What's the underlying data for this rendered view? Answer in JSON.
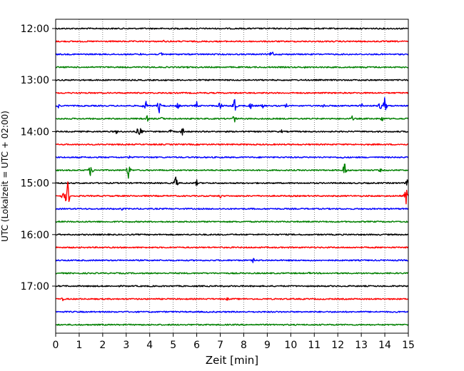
{
  "chart_data": {
    "type": "line",
    "title": "",
    "xlabel": "Zeit  [min]",
    "ylabel": "UTC (Lokalzeit = UTC + 02:00)",
    "xlim": [
      0,
      15
    ],
    "x_ticks": [
      "0",
      "1",
      "2",
      "3",
      "4",
      "5",
      "6",
      "7",
      "8",
      "9",
      "10",
      "11",
      "12",
      "13",
      "14",
      "15"
    ],
    "y_ticks": [
      "12:00",
      "13:00",
      "14:00",
      "15:00",
      "16:00",
      "17:00"
    ],
    "grid": "vertical dotted at each minute",
    "trace_colors": [
      "#000000",
      "#ff0000",
      "#0000ff",
      "#008000"
    ],
    "traces": [
      {
        "start": "12:00",
        "events": [
          {
            "t": 9.9,
            "amp": 2
          }
        ]
      },
      {
        "start": "12:15",
        "events": [
          {
            "t": 4.6,
            "amp": 2
          },
          {
            "t": 4.9,
            "amp": 2
          }
        ]
      },
      {
        "start": "12:30",
        "events": [
          {
            "t": 3.6,
            "amp": 2
          },
          {
            "t": 4.5,
            "amp": 5
          },
          {
            "t": 9.2,
            "amp": 8
          }
        ]
      },
      {
        "start": "12:45",
        "events": [
          {
            "t": 5.6,
            "amp": 2
          },
          {
            "t": 10.6,
            "amp": 2
          },
          {
            "t": 13.2,
            "amp": 2
          }
        ]
      },
      {
        "start": "13:00",
        "events": [
          {
            "t": 4.7,
            "amp": 2
          }
        ]
      },
      {
        "start": "13:15",
        "events": []
      },
      {
        "start": "13:30",
        "events": [
          {
            "t": 0.1,
            "amp": 5
          },
          {
            "t": 3.8,
            "amp": 14
          },
          {
            "t": 4.4,
            "amp": 12
          },
          {
            "t": 5.2,
            "amp": 6
          },
          {
            "t": 6.0,
            "amp": 6
          },
          {
            "t": 7.0,
            "amp": 10
          },
          {
            "t": 7.6,
            "amp": 16
          },
          {
            "t": 8.3,
            "amp": 7
          },
          {
            "t": 8.8,
            "amp": 5
          },
          {
            "t": 9.8,
            "amp": 4
          },
          {
            "t": 11.4,
            "amp": 5
          },
          {
            "t": 13.0,
            "amp": 6
          },
          {
            "t": 13.8,
            "amp": 8
          },
          {
            "t": 14.0,
            "amp": 14
          }
        ]
      },
      {
        "start": "13:45",
        "events": [
          {
            "t": 3.9,
            "amp": 5
          },
          {
            "t": 4.5,
            "amp": 4
          },
          {
            "t": 7.6,
            "amp": 8
          },
          {
            "t": 12.6,
            "amp": 5
          },
          {
            "t": 13.9,
            "amp": 6
          }
        ]
      },
      {
        "start": "14:00",
        "events": [
          {
            "t": 2.6,
            "amp": 5
          },
          {
            "t": 3.5,
            "amp": 7
          },
          {
            "t": 3.6,
            "amp": 9
          },
          {
            "t": 4.9,
            "amp": 4
          },
          {
            "t": 5.4,
            "amp": 8
          },
          {
            "t": 9.6,
            "amp": 3
          }
        ]
      },
      {
        "start": "14:15",
        "events": []
      },
      {
        "start": "14:30",
        "events": [
          {
            "t": 3.1,
            "amp": 4
          },
          {
            "t": 12.2,
            "amp": 3
          }
        ]
      },
      {
        "start": "14:45",
        "events": [
          {
            "t": 1.5,
            "amp": 13
          },
          {
            "t": 3.1,
            "amp": 14
          },
          {
            "t": 12.3,
            "amp": 15
          },
          {
            "t": 13.8,
            "amp": 4
          }
        ]
      },
      {
        "start": "15:00",
        "events": [
          {
            "t": 5.1,
            "amp": 13
          },
          {
            "t": 6.0,
            "amp": 5
          },
          {
            "t": 15.0,
            "amp": 14
          }
        ]
      },
      {
        "start": "15:15",
        "events": [
          {
            "t": 0.5,
            "amp": 28
          },
          {
            "t": 0.3,
            "amp": 6
          },
          {
            "t": 7.0,
            "amp": 4
          },
          {
            "t": 14.9,
            "amp": 14
          }
        ]
      },
      {
        "start": "15:30",
        "events": [
          {
            "t": 2.8,
            "amp": 3
          }
        ]
      },
      {
        "start": "15:45",
        "events": []
      },
      {
        "start": "16:00",
        "events": []
      },
      {
        "start": "16:15",
        "events": []
      },
      {
        "start": "16:30",
        "events": [
          {
            "t": 8.4,
            "amp": 4
          }
        ]
      },
      {
        "start": "16:45",
        "events": [
          {
            "t": 10.8,
            "amp": 2
          }
        ]
      },
      {
        "start": "17:00",
        "events": []
      },
      {
        "start": "17:15",
        "events": [
          {
            "t": 0.3,
            "amp": 3
          },
          {
            "t": 7.3,
            "amp": 3
          }
        ]
      },
      {
        "start": "17:30",
        "events": []
      },
      {
        "start": "17:45",
        "events": []
      }
    ]
  }
}
